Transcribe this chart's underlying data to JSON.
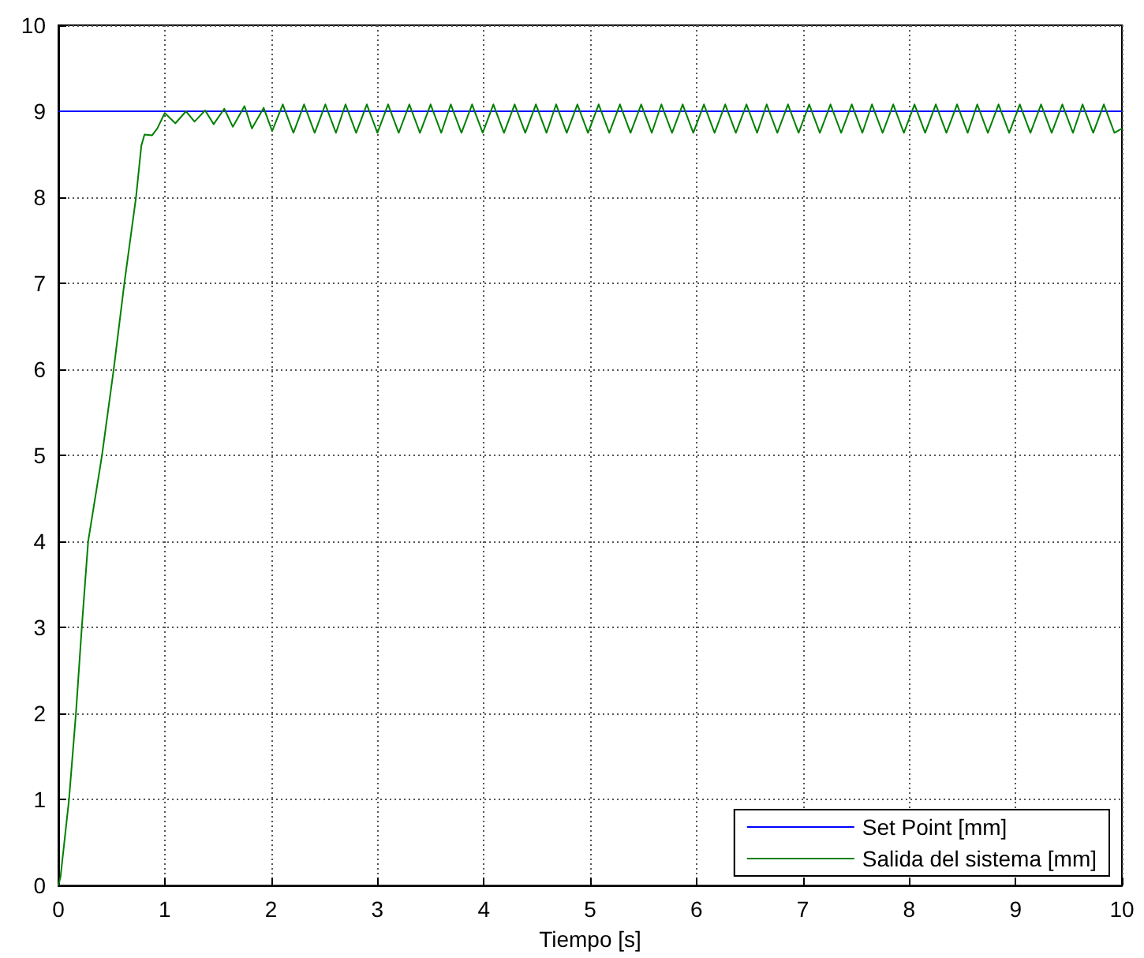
{
  "chart_data": {
    "type": "line",
    "xlabel": "Tiempo [s]",
    "xlim": [
      0,
      10
    ],
    "xticks": [
      0,
      1,
      2,
      3,
      4,
      5,
      6,
      7,
      8,
      9,
      10
    ],
    "ylim": [
      0,
      10
    ],
    "yticks": [
      0,
      1,
      2,
      3,
      4,
      5,
      6,
      7,
      8,
      9,
      10
    ],
    "grid": true,
    "legend": "bottom right",
    "marker": "none",
    "line_style": "solid",
    "series": [
      {
        "name": "Set Point [mm]",
        "color": "#0000ff",
        "x": [
          0,
          10
        ],
        "values": [
          9,
          9
        ]
      },
      {
        "name": "Salida del sistema [mm]",
        "color": "#008000",
        "x": [
          0,
          0.02,
          0.1,
          0.165,
          0.22,
          0.28,
          0.41,
          0.52,
          0.62,
          0.73,
          0.78,
          0.81,
          0.88,
          0.93,
          1.0,
          1.1,
          1.2,
          1.28,
          1.38,
          1.46,
          1.56,
          1.64,
          1.75,
          1.82,
          1.93,
          2.01,
          2.11,
          2.21,
          2.31,
          2.41,
          2.51,
          2.61,
          2.7,
          2.8,
          2.9,
          3.0,
          3.1,
          3.2,
          3.3,
          3.4,
          3.5,
          3.6,
          3.69,
          3.79,
          3.89,
          3.99,
          4.09,
          4.19,
          4.29,
          4.39,
          4.49,
          4.59,
          4.68,
          4.78,
          4.88,
          4.98,
          5.08,
          5.18,
          5.28,
          5.38,
          5.48,
          5.58,
          5.67,
          5.77,
          5.87,
          5.97,
          6.07,
          6.17,
          6.27,
          6.37,
          6.47,
          6.57,
          6.66,
          6.76,
          6.86,
          6.96,
          7.06,
          7.16,
          7.26,
          7.36,
          7.46,
          7.56,
          7.65,
          7.75,
          7.85,
          7.95,
          8.05,
          8.15,
          8.25,
          8.35,
          8.45,
          8.55,
          8.64,
          8.74,
          8.84,
          8.94,
          9.04,
          9.14,
          9.24,
          9.34,
          9.44,
          9.54,
          9.63,
          9.73,
          9.83,
          9.93,
          10
        ],
        "values": [
          0,
          0.1,
          1,
          2,
          3,
          4,
          5,
          6,
          7,
          8,
          8.6,
          8.73,
          8.72,
          8.8,
          8.98,
          8.86,
          9.0,
          8.88,
          9.01,
          8.85,
          9.03,
          8.82,
          9.06,
          8.8,
          9.04,
          8.77,
          9.08,
          8.75,
          9.08,
          8.75,
          9.08,
          8.75,
          9.08,
          8.75,
          9.08,
          8.75,
          9.08,
          8.75,
          9.08,
          8.75,
          9.08,
          8.75,
          9.08,
          8.75,
          9.08,
          8.75,
          9.08,
          8.75,
          9.08,
          8.75,
          9.08,
          8.75,
          9.08,
          8.75,
          9.08,
          8.75,
          9.08,
          8.75,
          9.08,
          8.75,
          9.08,
          8.75,
          9.08,
          8.75,
          9.08,
          8.75,
          9.08,
          8.75,
          9.08,
          8.75,
          9.08,
          8.75,
          9.08,
          8.75,
          9.08,
          8.75,
          9.08,
          8.75,
          9.08,
          8.75,
          9.08,
          8.75,
          9.08,
          8.75,
          9.08,
          8.75,
          9.08,
          8.75,
          9.08,
          8.75,
          9.08,
          8.75,
          9.08,
          8.75,
          9.08,
          8.75,
          9.08,
          8.75,
          9.08,
          8.75,
          9.08,
          8.75,
          9.08,
          8.75,
          9.08,
          8.75,
          8.8
        ]
      }
    ]
  }
}
